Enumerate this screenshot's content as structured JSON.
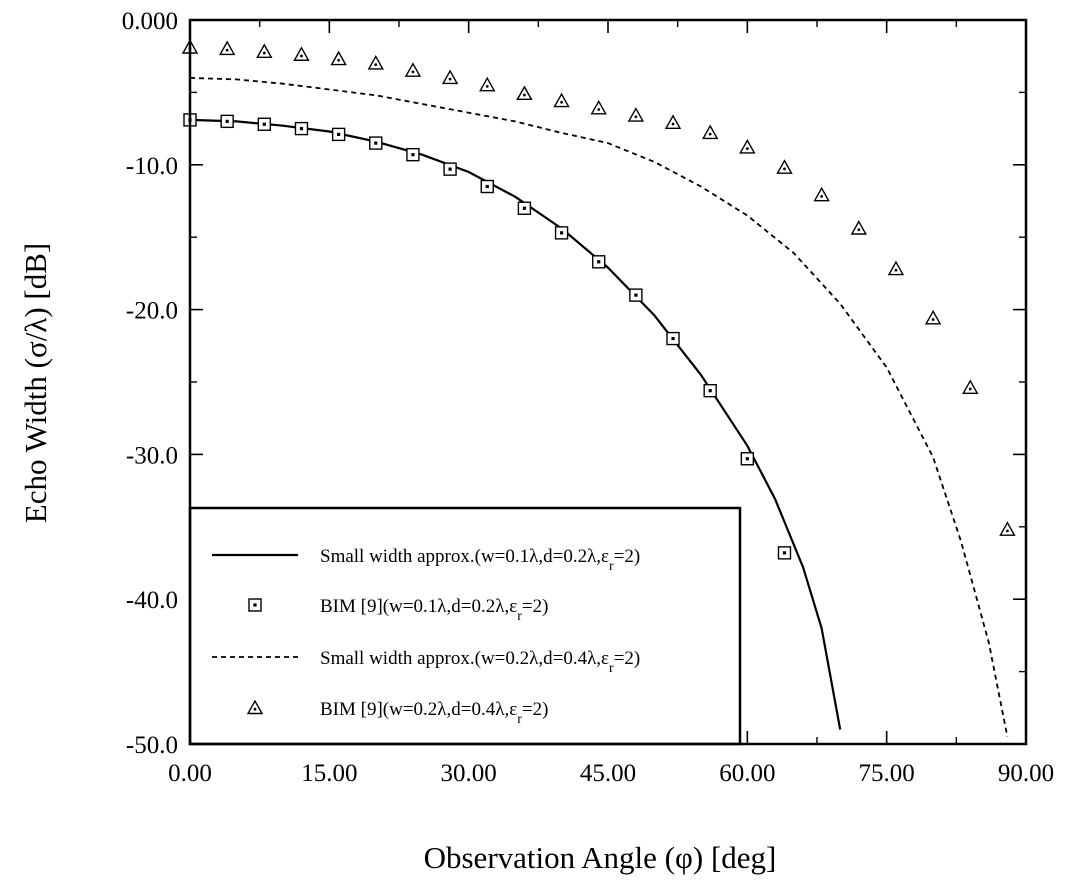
{
  "chart_data": {
    "type": "line",
    "xlabel": "Observation Angle (φ) [deg]",
    "ylabel": "Echo Width (σ/λ) [dB]",
    "xlim": [
      0,
      90
    ],
    "ylim": [
      -50,
      0
    ],
    "x_ticks": [
      "0.00",
      "15.00",
      "30.00",
      "45.00",
      "60.00",
      "75.00",
      "90.00"
    ],
    "x_tick_values": [
      0,
      15,
      30,
      45,
      60,
      75,
      90
    ],
    "y_ticks": [
      "0.000",
      "-10.0",
      "-20.0",
      "-30.0",
      "-40.0",
      "-50.0"
    ],
    "y_tick_values": [
      0,
      -10,
      -20,
      -30,
      -40,
      -50
    ],
    "grid": false,
    "legend_position": "bottom-left",
    "series": [
      {
        "name": "Small width approx.(w=0.1λ,d=0.2λ,εr=2)",
        "legend_parts": {
          "main": "Small width approx.(w=0.1λ,d=0.2λ,ε",
          "sub": "r",
          "tail": "=2)"
        },
        "style": "solid",
        "x": [
          0,
          5,
          10,
          15,
          20,
          25,
          30,
          35,
          40,
          45,
          50,
          55,
          60,
          63,
          66,
          68,
          70
        ],
        "y": [
          -6.9,
          -7.0,
          -7.3,
          -7.7,
          -8.4,
          -9.3,
          -10.5,
          -12.2,
          -14.4,
          -17.1,
          -20.4,
          -24.5,
          -29.4,
          -33.1,
          -37.8,
          -42.0,
          -49.0
        ]
      },
      {
        "name": "BIM [9](w=0.1λ,d=0.2λ,εr=2)",
        "legend_parts": {
          "main": "BIM [9](w=0.1λ,d=0.2λ,ε",
          "sub": "r",
          "tail": "=2)"
        },
        "style": "square-markers",
        "x": [
          0,
          4,
          8,
          12,
          16,
          20,
          24,
          28,
          32,
          36,
          40,
          44,
          48,
          52,
          56,
          60,
          64
        ],
        "y": [
          -6.9,
          -7.0,
          -7.2,
          -7.5,
          -7.9,
          -8.5,
          -9.3,
          -10.3,
          -11.5,
          -13.0,
          -14.7,
          -16.7,
          -19.0,
          -22.0,
          -25.6,
          -30.3,
          -36.8
        ]
      },
      {
        "name": "Small width approx.(w=0.2λ,d=0.4λ,εr=2)",
        "legend_parts": {
          "main": "Small width approx.(w=0.2λ,d=0.4λ,ε",
          "sub": "r",
          "tail": "=2)"
        },
        "style": "dashed",
        "x": [
          0,
          5,
          10,
          15,
          20,
          25,
          30,
          35,
          40,
          45,
          50,
          55,
          60,
          65,
          70,
          75,
          80,
          83,
          86,
          88
        ],
        "y": [
          -4.0,
          -4.1,
          -4.4,
          -4.8,
          -5.2,
          -5.8,
          -6.4,
          -7.0,
          -7.8,
          -8.5,
          -9.8,
          -11.5,
          -13.5,
          -16.1,
          -19.6,
          -24.0,
          -30.2,
          -36.0,
          -43.0,
          -49.5
        ]
      },
      {
        "name": "BIM [9](w=0.2λ,d=0.4λ,εr=2)",
        "legend_parts": {
          "main": "BIM [9](w=0.2λ,d=0.4λ,ε",
          "sub": "r",
          "tail": "=2)"
        },
        "style": "triangle-markers",
        "x": [
          0,
          4,
          8,
          12,
          16,
          20,
          24,
          28,
          32,
          36,
          40,
          44,
          48,
          52,
          56,
          60,
          64,
          68,
          72,
          76,
          80,
          84,
          88
        ],
        "y": [
          -1.9,
          -2.0,
          -2.2,
          -2.4,
          -2.7,
          -3.0,
          -3.5,
          -4.0,
          -4.5,
          -5.1,
          -5.6,
          -6.1,
          -6.6,
          -7.1,
          -7.8,
          -8.8,
          -10.2,
          -12.1,
          -14.4,
          -17.2,
          -20.6,
          -25.4,
          -35.2
        ]
      }
    ]
  }
}
